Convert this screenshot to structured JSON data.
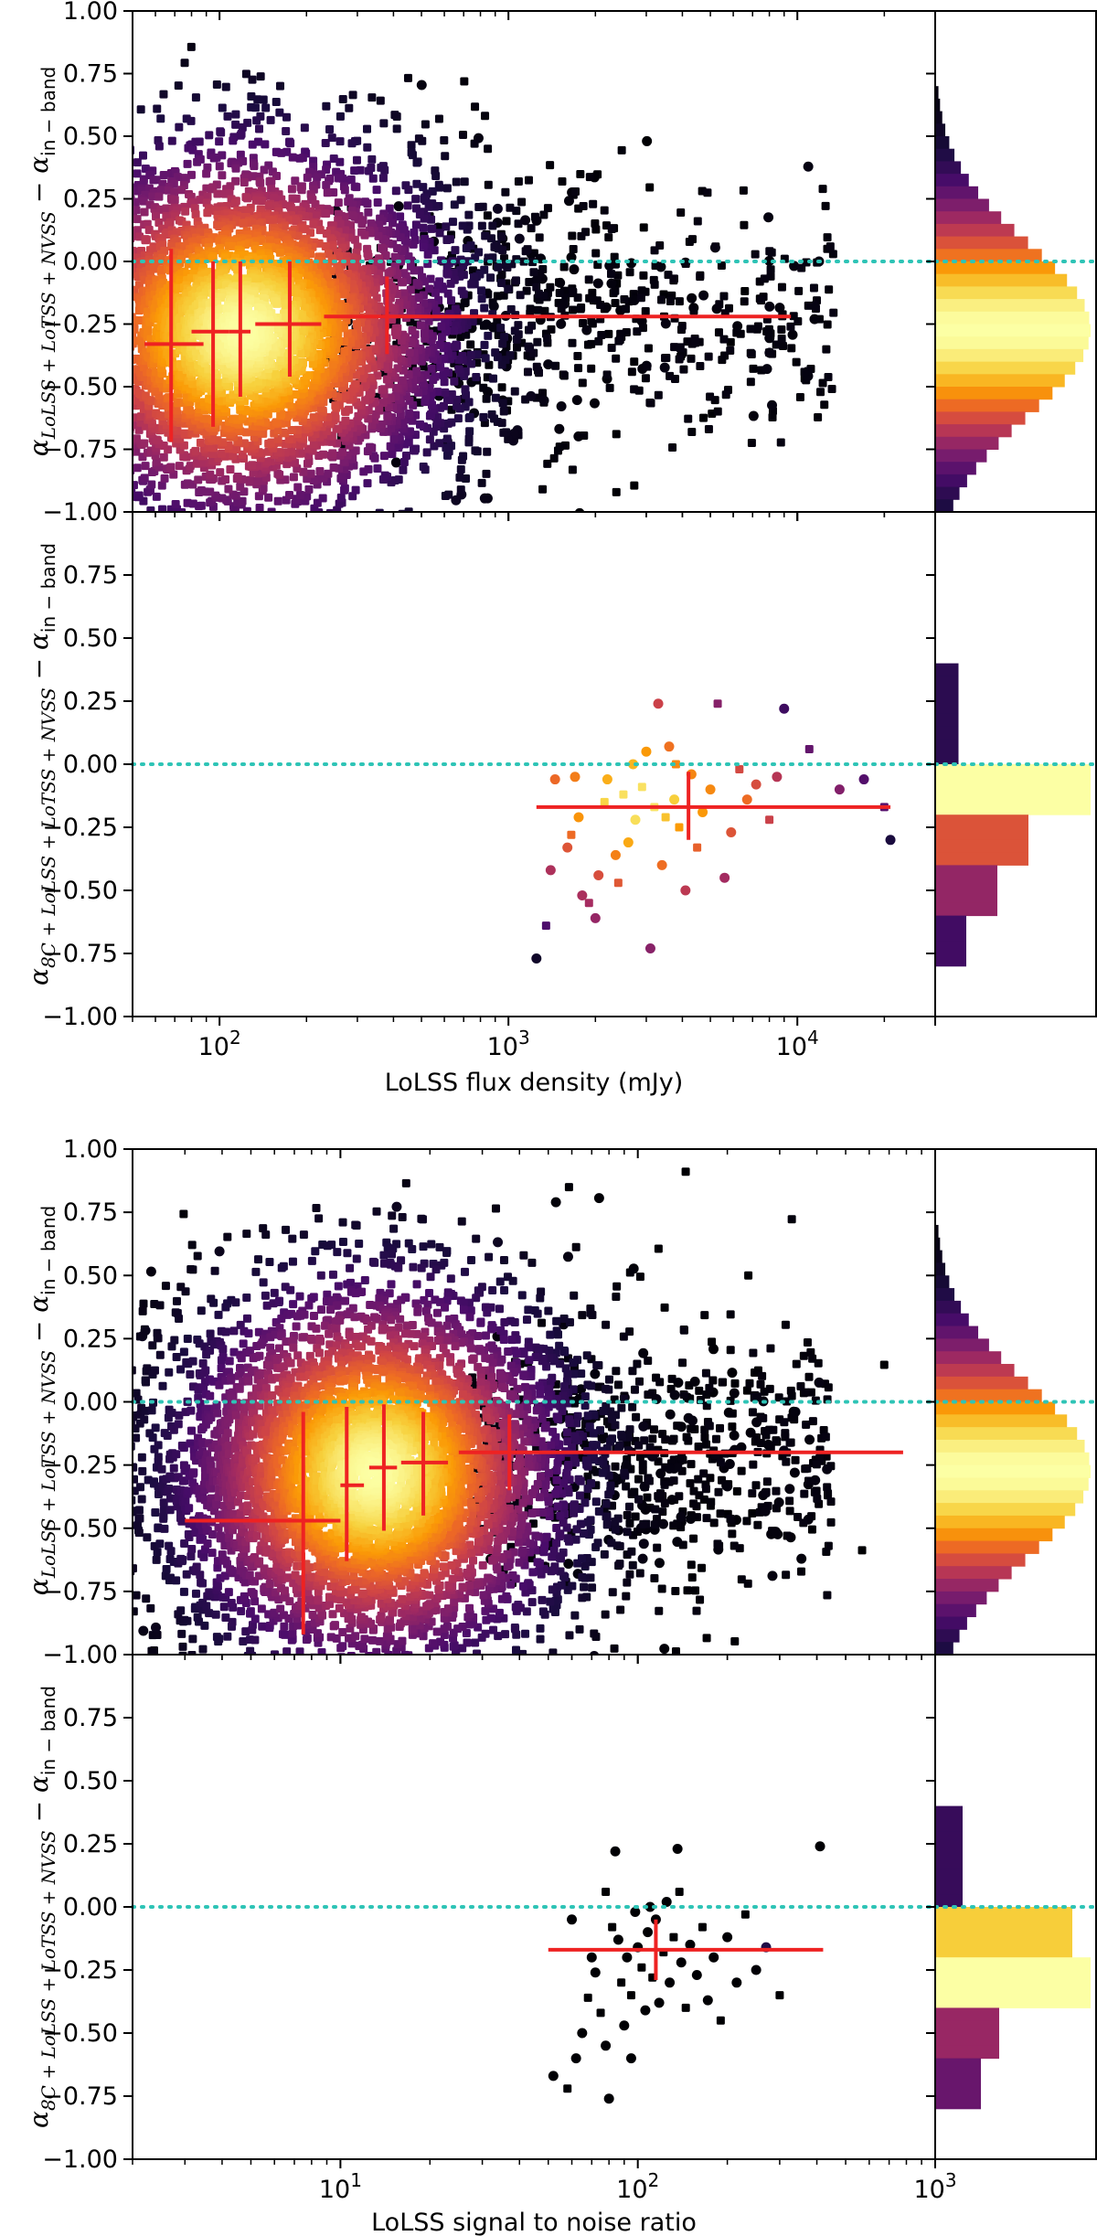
{
  "figure": {
    "x_label_top": "LoLSS flux density (mJy)",
    "x_label_bottom": "LoLSS signal to noise ratio"
  },
  "ylabels": {
    "lolss": {
      "alpha": "α",
      "sub": "LoLSS + LoTSS + NVSS",
      "minus": " − ",
      "alpha2": "α",
      "sub2": "in − band"
    },
    "eightc": {
      "alpha": "α",
      "sub": "8C + LoLSS + LoTSS + NVSS",
      "minus": " − ",
      "alpha2": "α",
      "sub2": "in − band"
    }
  },
  "y_ticks": [
    "1.00",
    "0.75",
    "0.50",
    "0.25",
    "0.00",
    "−0.25",
    "−0.50",
    "−0.75",
    "−1.00"
  ],
  "y_ticks_sub": [
    "0.75",
    "0.50",
    "0.25",
    "0.00",
    "−0.25",
    "−0.50",
    "−0.75",
    "−1.00"
  ],
  "colors": {
    "reference_line": "#2ec4b6",
    "binned_median": "#ee2222",
    "colormap": [
      "#000004",
      "#1b0c41",
      "#4a0c6b",
      "#781c6d",
      "#a52c60",
      "#cf4446",
      "#ed6925",
      "#fb9b06",
      "#f7d13d",
      "#fcffa4"
    ]
  },
  "chart_data": [
    {
      "id": "flux-lolss",
      "type": "scatter",
      "title": "",
      "xlabel": "LoLSS flux density (mJy)",
      "ylabel": "α_{LoLSS+LoTSS+NVSS} − α_{in−band}",
      "xscale": "log",
      "xlim": [
        50,
        30000
      ],
      "ylim": [
        -1.0,
        1.0
      ],
      "x_ticks": [
        {
          "value": 100,
          "base": "10",
          "exp": "2"
        },
        {
          "value": 1000,
          "base": "10",
          "exp": "3"
        },
        {
          "value": 10000,
          "base": "10",
          "exp": "4"
        }
      ],
      "reference_line_y": 0.0,
      "density_cloud": {
        "center_x": 120,
        "center_y": -0.28,
        "log_spread": 0.34,
        "y_spread": 0.36
      },
      "binned_medians": [
        {
          "x": 68,
          "x_lo": 55,
          "x_hi": 88,
          "y": -0.33,
          "y_lo": -0.72,
          "y_hi": 0.05
        },
        {
          "x": 95,
          "x_lo": 80,
          "x_hi": 108,
          "y": -0.28,
          "y_lo": -0.66,
          "y_hi": 0.0
        },
        {
          "x": 118,
          "x_lo": 108,
          "x_hi": 128,
          "y": -0.28,
          "y_lo": -0.54,
          "y_hi": 0.0
        },
        {
          "x": 175,
          "x_lo": 133,
          "x_hi": 225,
          "y": -0.25,
          "y_lo": -0.46,
          "y_hi": 0.0
        },
        {
          "x": 380,
          "x_lo": 230,
          "x_hi": 9500,
          "y": -0.22,
          "y_lo": -0.37,
          "y_hi": -0.06
        }
      ]
    },
    {
      "id": "flux-8c",
      "type": "scatter",
      "xlabel": "LoLSS flux density (mJy)",
      "ylabel": "α_{8C+LoLSS+LoTSS+NVSS} − α_{in−band}",
      "xscale": "log",
      "xlim": [
        50,
        30000
      ],
      "ylim": [
        -1.0,
        1.0
      ],
      "reference_line_y": 0.0,
      "points": [
        [
          1250,
          -0.77
        ],
        [
          1350,
          -0.64
        ],
        [
          1400,
          -0.42
        ],
        [
          1600,
          -0.33
        ],
        [
          1650,
          -0.28
        ],
        [
          1750,
          -0.21
        ],
        [
          1800,
          -0.52
        ],
        [
          1900,
          -0.55
        ],
        [
          2000,
          -0.61
        ],
        [
          2050,
          -0.44
        ],
        [
          2150,
          -0.15
        ],
        [
          2200,
          -0.06
        ],
        [
          2350,
          -0.36
        ],
        [
          2500,
          -0.12
        ],
        [
          2600,
          -0.31
        ],
        [
          2750,
          -0.22
        ],
        [
          2900,
          -0.09
        ],
        [
          3000,
          0.05
        ],
        [
          3100,
          -0.73
        ],
        [
          3200,
          -0.17
        ],
        [
          3300,
          0.24
        ],
        [
          3400,
          -0.4
        ],
        [
          3500,
          -0.21
        ],
        [
          3600,
          0.07
        ],
        [
          3750,
          -0.14
        ],
        [
          3900,
          -0.25
        ],
        [
          4100,
          -0.5
        ],
        [
          4300,
          -0.04
        ],
        [
          4500,
          -0.33
        ],
        [
          4700,
          -0.19
        ],
        [
          5000,
          -0.1
        ],
        [
          5300,
          0.24
        ],
        [
          5600,
          -0.45
        ],
        [
          5900,
          -0.27
        ],
        [
          6300,
          -0.02
        ],
        [
          6700,
          -0.14
        ],
        [
          7200,
          -0.08
        ],
        [
          8000,
          -0.22
        ],
        [
          8500,
          -0.05
        ],
        [
          9000,
          0.22
        ],
        [
          11000,
          0.06
        ],
        [
          14000,
          -0.1
        ],
        [
          17000,
          -0.06
        ],
        [
          20000,
          -0.17
        ],
        [
          21000,
          -0.3
        ],
        [
          1700,
          -0.05
        ],
        [
          2400,
          -0.47
        ],
        [
          1450,
          -0.06
        ],
        [
          2700,
          0.0
        ],
        [
          3800,
          0.0
        ]
      ],
      "binned_medians": [
        {
          "x": 4200,
          "x_lo": 1250,
          "x_hi": 21000,
          "y": -0.17,
          "y_lo": -0.3,
          "y_hi": -0.03
        }
      ]
    },
    {
      "id": "snr-lolss",
      "type": "scatter",
      "xlabel": "LoLSS signal to noise ratio",
      "ylabel": "α_{LoLSS+LoTSS+NVSS} − α_{in−band}",
      "xscale": "log",
      "xlim": [
        2,
        1000
      ],
      "ylim": [
        -1.0,
        1.0
      ],
      "x_ticks": [
        {
          "value": 10,
          "base": "10",
          "exp": "1"
        },
        {
          "value": 100,
          "base": "10",
          "exp": "2"
        },
        {
          "value": 1000,
          "base": "10",
          "exp": "3"
        }
      ],
      "reference_line_y": 0.0,
      "density_cloud": {
        "center_x": 13,
        "center_y": -0.28,
        "log_spread": 0.3,
        "y_spread": 0.36
      },
      "binned_medians": [
        {
          "x": 7.5,
          "x_lo": 3.0,
          "x_hi": 10.0,
          "y": -0.47,
          "y_lo": -0.92,
          "y_hi": -0.04
        },
        {
          "x": 10.5,
          "x_lo": 10.0,
          "x_hi": 12.0,
          "y": -0.33,
          "y_lo": -0.63,
          "y_hi": -0.02
        },
        {
          "x": 14.0,
          "x_lo": 12.5,
          "x_hi": 15.5,
          "y": -0.26,
          "y_lo": -0.51,
          "y_hi": -0.01
        },
        {
          "x": 19.0,
          "x_lo": 16.0,
          "x_hi": 23.0,
          "y": -0.24,
          "y_lo": -0.45,
          "y_hi": -0.04
        },
        {
          "x": 37.0,
          "x_lo": 25.0,
          "x_hi": 780,
          "y": -0.2,
          "y_lo": -0.35,
          "y_hi": -0.05
        }
      ]
    },
    {
      "id": "snr-8c",
      "type": "scatter",
      "xlabel": "LoLSS signal to noise ratio",
      "ylabel": "α_{8C+LoLSS+LoTSS+NVSS} − α_{in−band}",
      "xscale": "log",
      "xlim": [
        2,
        1000
      ],
      "ylim": [
        -1.0,
        1.0
      ],
      "reference_line_y": 0.0,
      "points": [
        [
          52,
          -0.67
        ],
        [
          58,
          -0.72
        ],
        [
          62,
          -0.6
        ],
        [
          65,
          -0.5
        ],
        [
          68,
          -0.36
        ],
        [
          70,
          -0.2
        ],
        [
          72,
          -0.26
        ],
        [
          75,
          -0.42
        ],
        [
          78,
          -0.55
        ],
        [
          80,
          -0.76
        ],
        [
          82,
          -0.08
        ],
        [
          84,
          0.22
        ],
        [
          86,
          -0.13
        ],
        [
          88,
          -0.3
        ],
        [
          90,
          -0.47
        ],
        [
          92,
          -0.2
        ],
        [
          95,
          -0.35
        ],
        [
          98,
          -0.02
        ],
        [
          100,
          -0.16
        ],
        [
          103,
          -0.24
        ],
        [
          106,
          -0.41
        ],
        [
          108,
          -0.1
        ],
        [
          112,
          -0.28
        ],
        [
          115,
          -0.05
        ],
        [
          118,
          -0.38
        ],
        [
          122,
          -0.18
        ],
        [
          125,
          0.02
        ],
        [
          128,
          -0.3
        ],
        [
          132,
          -0.12
        ],
        [
          136,
          0.23
        ],
        [
          140,
          -0.22
        ],
        [
          145,
          -0.4
        ],
        [
          150,
          -0.15
        ],
        [
          158,
          -0.27
        ],
        [
          165,
          -0.08
        ],
        [
          172,
          -0.37
        ],
        [
          180,
          -0.2
        ],
        [
          190,
          -0.45
        ],
        [
          200,
          -0.12
        ],
        [
          215,
          -0.3
        ],
        [
          230,
          -0.03
        ],
        [
          250,
          -0.25
        ],
        [
          270,
          -0.16
        ],
        [
          300,
          -0.35
        ],
        [
          410,
          0.24
        ],
        [
          60,
          -0.05
        ],
        [
          78,
          0.06
        ],
        [
          95,
          -0.6
        ],
        [
          110,
          0.0
        ],
        [
          138,
          0.06
        ]
      ],
      "binned_medians": [
        {
          "x": 115,
          "x_lo": 50,
          "x_hi": 420,
          "y": -0.17,
          "y_lo": -0.29,
          "y_hi": -0.05
        }
      ]
    }
  ]
}
